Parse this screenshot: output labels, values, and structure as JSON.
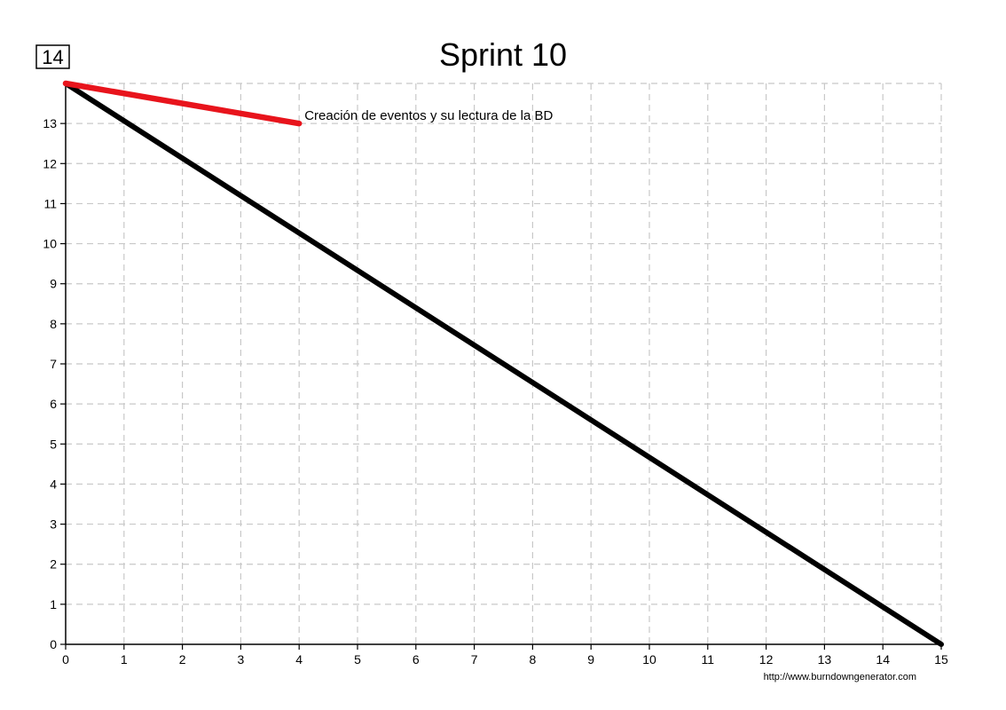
{
  "chart_data": {
    "type": "line",
    "title": "Sprint 10",
    "max_value_label": "14",
    "xlabel": "",
    "ylabel": "",
    "xlim": [
      0,
      15
    ],
    "ylim": [
      0,
      14
    ],
    "x_ticks": [
      0,
      1,
      2,
      3,
      4,
      5,
      6,
      7,
      8,
      9,
      10,
      11,
      12,
      13,
      14,
      15
    ],
    "y_ticks": [
      0,
      1,
      2,
      3,
      4,
      5,
      6,
      7,
      8,
      9,
      10,
      11,
      12,
      13
    ],
    "grid": true,
    "series": [
      {
        "color": "#000000",
        "points": [
          [
            0,
            14
          ],
          [
            15,
            0
          ]
        ]
      },
      {
        "color": "#e8141c",
        "points": [
          [
            0,
            14
          ],
          [
            4,
            13
          ]
        ]
      }
    ],
    "annotations": [
      {
        "text": "Creación de eventos y su lectura de la BD",
        "x": 4,
        "y": 13
      }
    ],
    "credit": "http://www.burndowngenerator.com"
  }
}
